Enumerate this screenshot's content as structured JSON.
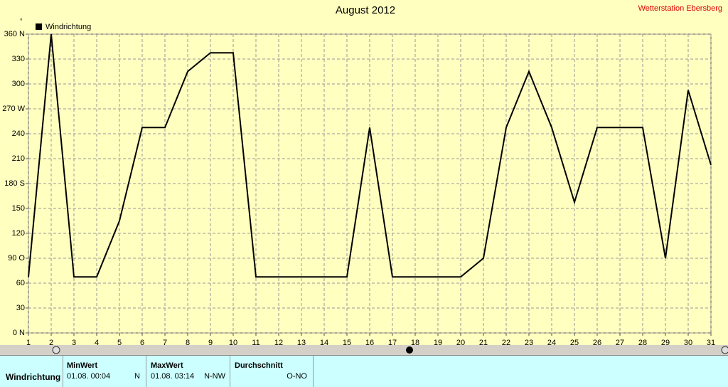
{
  "chart_data": {
    "type": "line",
    "title": "August 2012",
    "station": "Wetterstation Ebersberg",
    "y_unit": "°",
    "x": [
      1,
      2,
      3,
      4,
      5,
      6,
      7,
      8,
      9,
      10,
      11,
      12,
      13,
      14,
      15,
      16,
      17,
      18,
      19,
      20,
      21,
      22,
      23,
      24,
      25,
      26,
      27,
      28,
      29,
      30,
      31
    ],
    "series": [
      {
        "name": "Windrichtung",
        "color": "#000000",
        "values": [
          67.5,
          360,
          67.5,
          67.5,
          135,
          247.5,
          247.5,
          315,
          337.5,
          337.5,
          67.5,
          67.5,
          67.5,
          67.5,
          67.5,
          247.5,
          67.5,
          67.5,
          67.5,
          67.5,
          90,
          247.5,
          315,
          247.5,
          157.5,
          247.5,
          247.5,
          247.5,
          90,
          292.5,
          202.5
        ]
      }
    ],
    "xlim": [
      1,
      31
    ],
    "xticks": [
      1,
      2,
      3,
      4,
      5,
      6,
      7,
      8,
      9,
      10,
      11,
      12,
      13,
      14,
      15,
      16,
      17,
      18,
      19,
      20,
      21,
      22,
      23,
      24,
      25,
      26,
      27,
      28,
      29,
      30,
      31
    ],
    "ylim": [
      0,
      360
    ],
    "yticks": [
      {
        "value": 0,
        "label": "0 N"
      },
      30,
      60,
      {
        "value": 90,
        "label": "90  O"
      },
      120,
      150,
      {
        "value": 180,
        "label": "180 S"
      },
      210,
      240,
      {
        "value": 270,
        "label": "270 W"
      },
      300,
      330,
      {
        "value": 360,
        "label": "360 N"
      }
    ],
    "grid": true
  },
  "table": {
    "row_label": "Windrichtung",
    "columns": [
      {
        "header": "MinWert",
        "time": "01.08.  00:04",
        "value": "N"
      },
      {
        "header": "MaxWert",
        "time": "01.08.  03:14",
        "value": "N-NW"
      },
      {
        "header": "Durchschnitt",
        "value": "O-NO"
      }
    ]
  }
}
